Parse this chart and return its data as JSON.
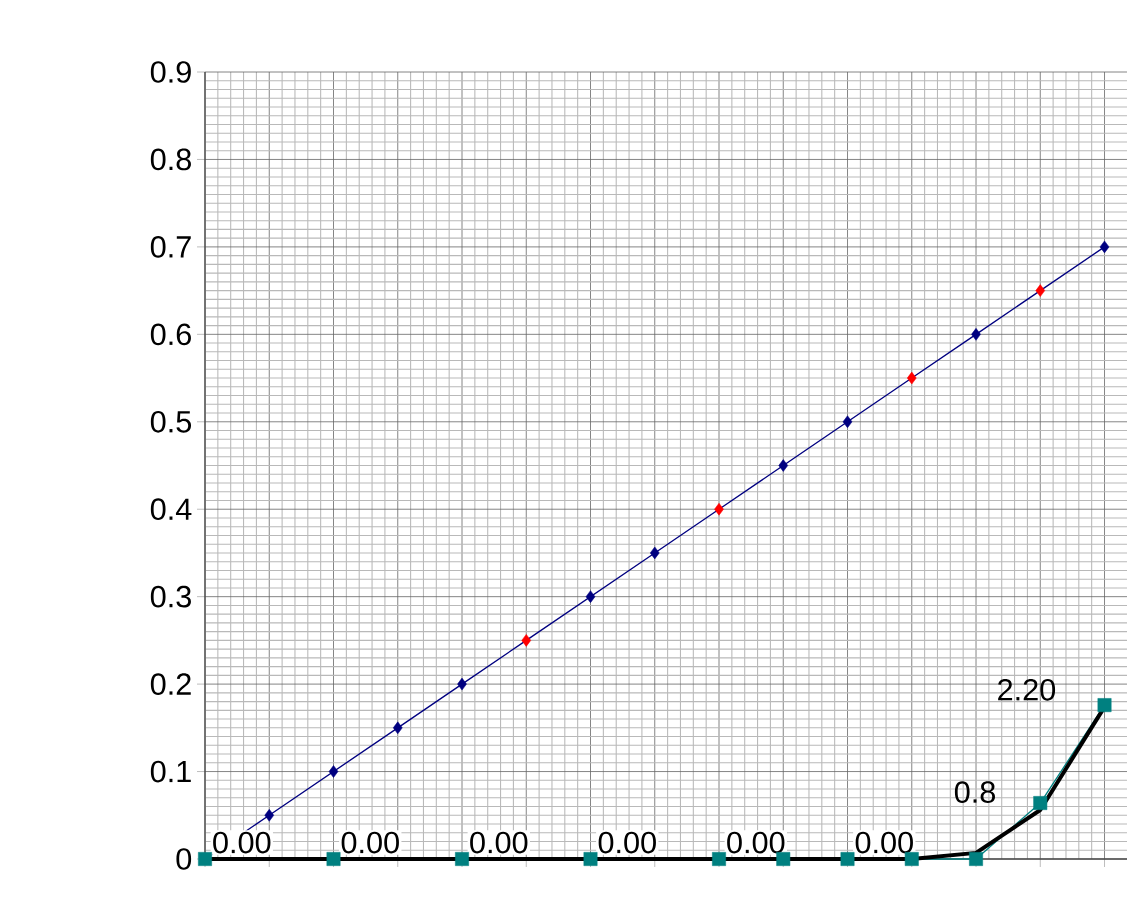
{
  "chart_data": {
    "type": "line",
    "categories": [
      null,
      null,
      null,
      null,
      null,
      null,
      null,
      null,
      null,
      null,
      null,
      null,
      null,
      null,
      null
    ],
    "ylim": [
      0,
      0.9
    ],
    "yticks": [
      0,
      0.1,
      0.2,
      0.3,
      0.4,
      0.5,
      0.6,
      0.7,
      0.8,
      0.9
    ],
    "grid": true,
    "series": [
      {
        "marker": "diamond",
        "color": "#000080",
        "colors": [
          null,
          "#000080",
          "#000080",
          "#000080",
          "#000080",
          "#ff0000",
          "#000080",
          "#000080",
          "#ff0000",
          "#000080",
          "#000080",
          "#ff0000",
          "#000080",
          "#ff0000",
          "#000080"
        ],
        "values": [
          0,
          0.05,
          0.1,
          0.15,
          0.2,
          0.25,
          0.3,
          0.35,
          0.4,
          0.45,
          0.5,
          0.55,
          0.6,
          0.65,
          0.7
        ]
      },
      {
        "marker": "square",
        "color": "#008080",
        "values": [
          0,
          null,
          0,
          null,
          0,
          null,
          0,
          null,
          0,
          0,
          0,
          0,
          0,
          0.064,
          0.176
        ],
        "value_labels": [
          "0.00",
          null,
          "0.00",
          null,
          "0.00",
          null,
          "0.00",
          null,
          "0.00",
          null,
          "0.00",
          null,
          null,
          null,
          null
        ]
      },
      {
        "marker": "none",
        "color": "#000000",
        "values": [
          0,
          0,
          0,
          0,
          0,
          0,
          0,
          0,
          0,
          0,
          0,
          0,
          0.007,
          0.056,
          0.174
        ]
      }
    ],
    "annotations": [
      "0.8",
      "2.20"
    ]
  }
}
